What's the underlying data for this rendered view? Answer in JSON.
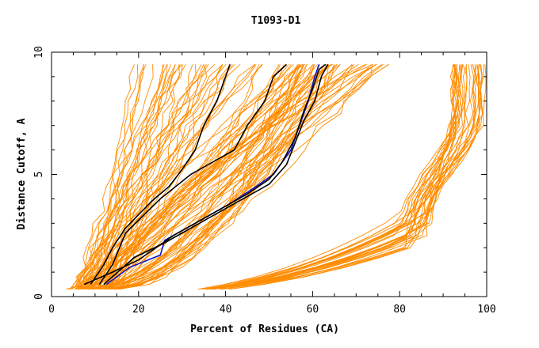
{
  "chart_data": {
    "type": "line",
    "title": "T1093-D1",
    "xlabel": "Percent of Residues (CA)",
    "ylabel": "Distance Cutoff, A",
    "xlim": [
      0,
      100
    ],
    "ylim": [
      0,
      10
    ],
    "xticks": [
      0,
      20,
      40,
      60,
      80,
      100
    ],
    "yticks": [
      0,
      5,
      10
    ],
    "grid": false,
    "legend": "none",
    "colors": {
      "background": "#ffffff",
      "axis": "#000000",
      "models": "#ff8c00",
      "highlight": "#1010c8",
      "reference": "#000000"
    },
    "series": [
      {
        "kind": "highlight",
        "points": [
          [
            12.6,
            0.5
          ],
          [
            18,
            1.2
          ],
          [
            25,
            1.7
          ],
          [
            26,
            2.3
          ],
          [
            33,
            3.0
          ],
          [
            41,
            3.8
          ],
          [
            47,
            4.5
          ],
          [
            51,
            5.0
          ],
          [
            55,
            6.0
          ],
          [
            57,
            7.0
          ],
          [
            59,
            8.0
          ],
          [
            60.5,
            9.0
          ],
          [
            61.5,
            9.5
          ]
        ]
      },
      {
        "kind": "reference",
        "points": [
          [
            9,
            0.5
          ],
          [
            12,
            1.3
          ],
          [
            14,
            2.0
          ],
          [
            17,
            2.8
          ],
          [
            23,
            3.9
          ],
          [
            27,
            4.5
          ],
          [
            30,
            5.2
          ],
          [
            33,
            6.0
          ],
          [
            35,
            7.0
          ],
          [
            38,
            8.0
          ],
          [
            40,
            9.0
          ],
          [
            41,
            9.5
          ]
        ]
      },
      {
        "kind": "reference",
        "points": [
          [
            11,
            0.5
          ],
          [
            14,
            1.3
          ],
          [
            17,
            2.6
          ],
          [
            21,
            3.3
          ],
          [
            25,
            4.0
          ],
          [
            32,
            5.0
          ],
          [
            42,
            6.0
          ],
          [
            45,
            7.0
          ],
          [
            49,
            8.0
          ],
          [
            51,
            9.0
          ],
          [
            54,
            9.5
          ]
        ]
      },
      {
        "kind": "reference",
        "points": [
          [
            7.5,
            0.5
          ],
          [
            14,
            1.0
          ],
          [
            20,
            1.5
          ],
          [
            28,
            2.5
          ],
          [
            38,
            3.5
          ],
          [
            45,
            4.2
          ],
          [
            50,
            4.8
          ],
          [
            53,
            5.5
          ],
          [
            56,
            6.5
          ],
          [
            58,
            7.6
          ],
          [
            60,
            8.5
          ],
          [
            61.5,
            9.3
          ],
          [
            63,
            9.5
          ]
        ]
      },
      {
        "kind": "reference",
        "points": [
          [
            12,
            0.5
          ],
          [
            19,
            1.6
          ],
          [
            26,
            2.2
          ],
          [
            36,
            3.2
          ],
          [
            44,
            4.0
          ],
          [
            50,
            4.6
          ],
          [
            54,
            5.4
          ],
          [
            56,
            6.3
          ],
          [
            58,
            7.2
          ],
          [
            60.5,
            8.0
          ],
          [
            62,
            9.0
          ],
          [
            63.5,
            9.5
          ]
        ]
      }
    ]
  }
}
